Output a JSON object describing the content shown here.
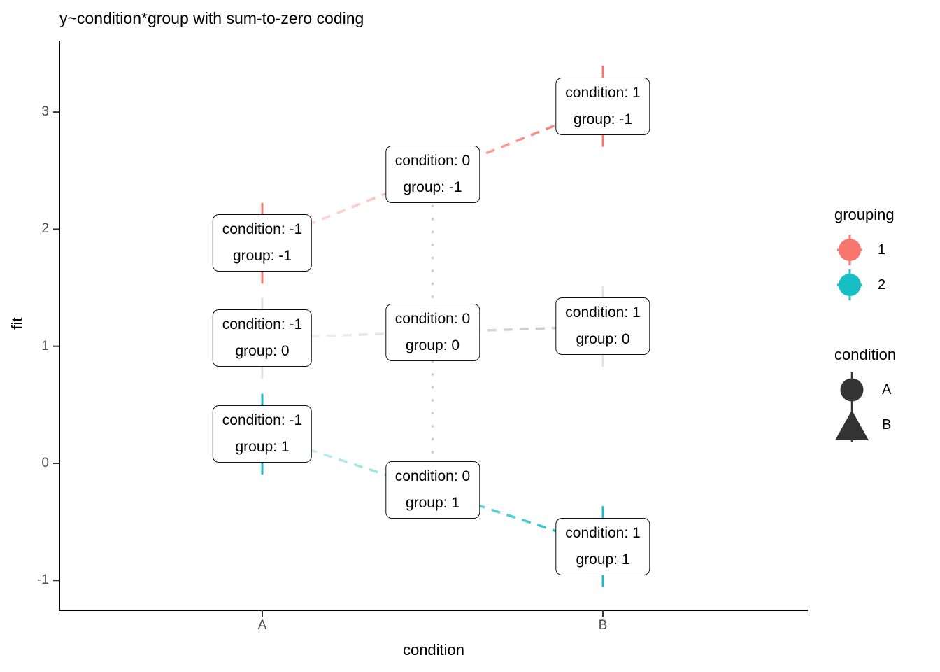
{
  "page": {
    "title": "y~condition*group with sum-to-zero coding"
  },
  "chart_data": {
    "type": "line",
    "title": "y~condition*group with sum-to-zero coding",
    "xlabel": "condition",
    "ylabel": "fit",
    "x_ticks": [
      {
        "value": -1,
        "label": "A"
      },
      {
        "value": 1,
        "label": "B"
      }
    ],
    "y_ticks": [
      3,
      2,
      1,
      0,
      -1
    ],
    "ylim": [
      -1.3,
      3.65
    ],
    "grid": false,
    "legend_position": "right",
    "series": [
      {
        "name": "group -1 (grouping 1)",
        "color": "#F8766D",
        "err_color": "#F8766D",
        "x": [
          -1,
          1
        ],
        "y": [
          1.88,
          3.05
        ],
        "err": 0.345,
        "shapes": [
          "circle",
          "triangle"
        ],
        "linetype": "dashed"
      },
      {
        "name": "group 0",
        "color": "#C4C4C4",
        "err_color": "#E2E2E2",
        "x": [
          -1,
          1
        ],
        "y": [
          1.07,
          1.17
        ],
        "err": 0.345,
        "shapes": [
          "circle",
          "triangle"
        ],
        "linetype": "dashed"
      },
      {
        "name": "group 1 (grouping 2)",
        "color": "#17BFC4",
        "err_color": "#17BFC4",
        "x": [
          -1,
          1
        ],
        "y": [
          0.25,
          -0.71
        ],
        "err": 0.345,
        "shapes": [
          "circle",
          "triangle"
        ],
        "linetype": "dashed"
      }
    ],
    "point_labels": [
      {
        "x": -1,
        "y": 1.88,
        "line1": "condition: -1",
        "line2": "group: -1"
      },
      {
        "x": 0,
        "y": 2.47,
        "line1": "condition: 0",
        "line2": "group: -1"
      },
      {
        "x": 1,
        "y": 3.05,
        "line1": "condition: 1",
        "line2": "group: -1"
      },
      {
        "x": -1,
        "y": 1.07,
        "line1": "condition: -1",
        "line2": "group: 0"
      },
      {
        "x": 0,
        "y": 1.12,
        "line1": "condition: 0",
        "line2": "group: 0"
      },
      {
        "x": 1,
        "y": 1.17,
        "line1": "condition: 1",
        "line2": "group: 0"
      },
      {
        "x": -1,
        "y": 0.25,
        "line1": "condition: -1",
        "line2": "group: 1"
      },
      {
        "x": 0,
        "y": -0.23,
        "line1": "condition: 0",
        "line2": "group: 1"
      },
      {
        "x": 1,
        "y": -0.71,
        "line1": "condition: 1",
        "line2": "group: 1"
      }
    ]
  },
  "legend": {
    "grouping": {
      "title": "grouping",
      "items": [
        {
          "label": "1",
          "color": "#F8766D"
        },
        {
          "label": "2",
          "color": "#17BFC4"
        }
      ]
    },
    "condition": {
      "title": "condition",
      "color": "#333333",
      "items": [
        {
          "label": "A",
          "shape": "circle"
        },
        {
          "label": "B",
          "shape": "triangle"
        }
      ]
    }
  },
  "colors": {
    "axis_line": "#000000",
    "tick_label": "#4D4D4D",
    "reference_line": "#CFCFCF"
  }
}
